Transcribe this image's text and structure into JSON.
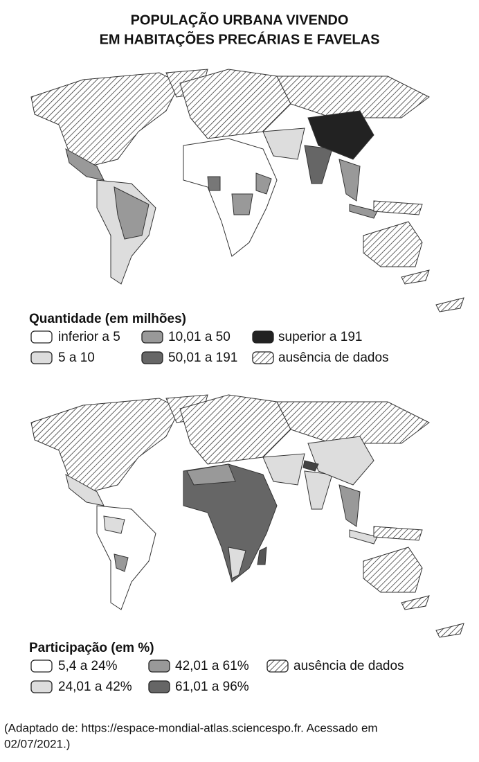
{
  "title": [
    "POPULAÇÃO URBANA VIVENDO",
    "EM HABITAÇÕES PRECÁRIAS E FAVELAS"
  ],
  "maps": [
    {
      "legend_title": "Quantidade (em milhões)",
      "legend": [
        "inferior a 5",
        "10,01 a 50",
        "superior a 191",
        "5 a 10",
        "50,01 a 191",
        "ausência de  dados"
      ]
    },
    {
      "legend_title": "Participação (em %)",
      "legend": [
        "5,4 a 24%",
        "42,01 a 61%",
        "ausência de dados",
        "24,01 a 42%",
        "61,01 a 96%"
      ]
    }
  ],
  "source": [
    "(Adaptado de: https://espace-mondial-atlas.sciencespo.fr. Acessado em",
    "02/07/2021.)"
  ]
}
